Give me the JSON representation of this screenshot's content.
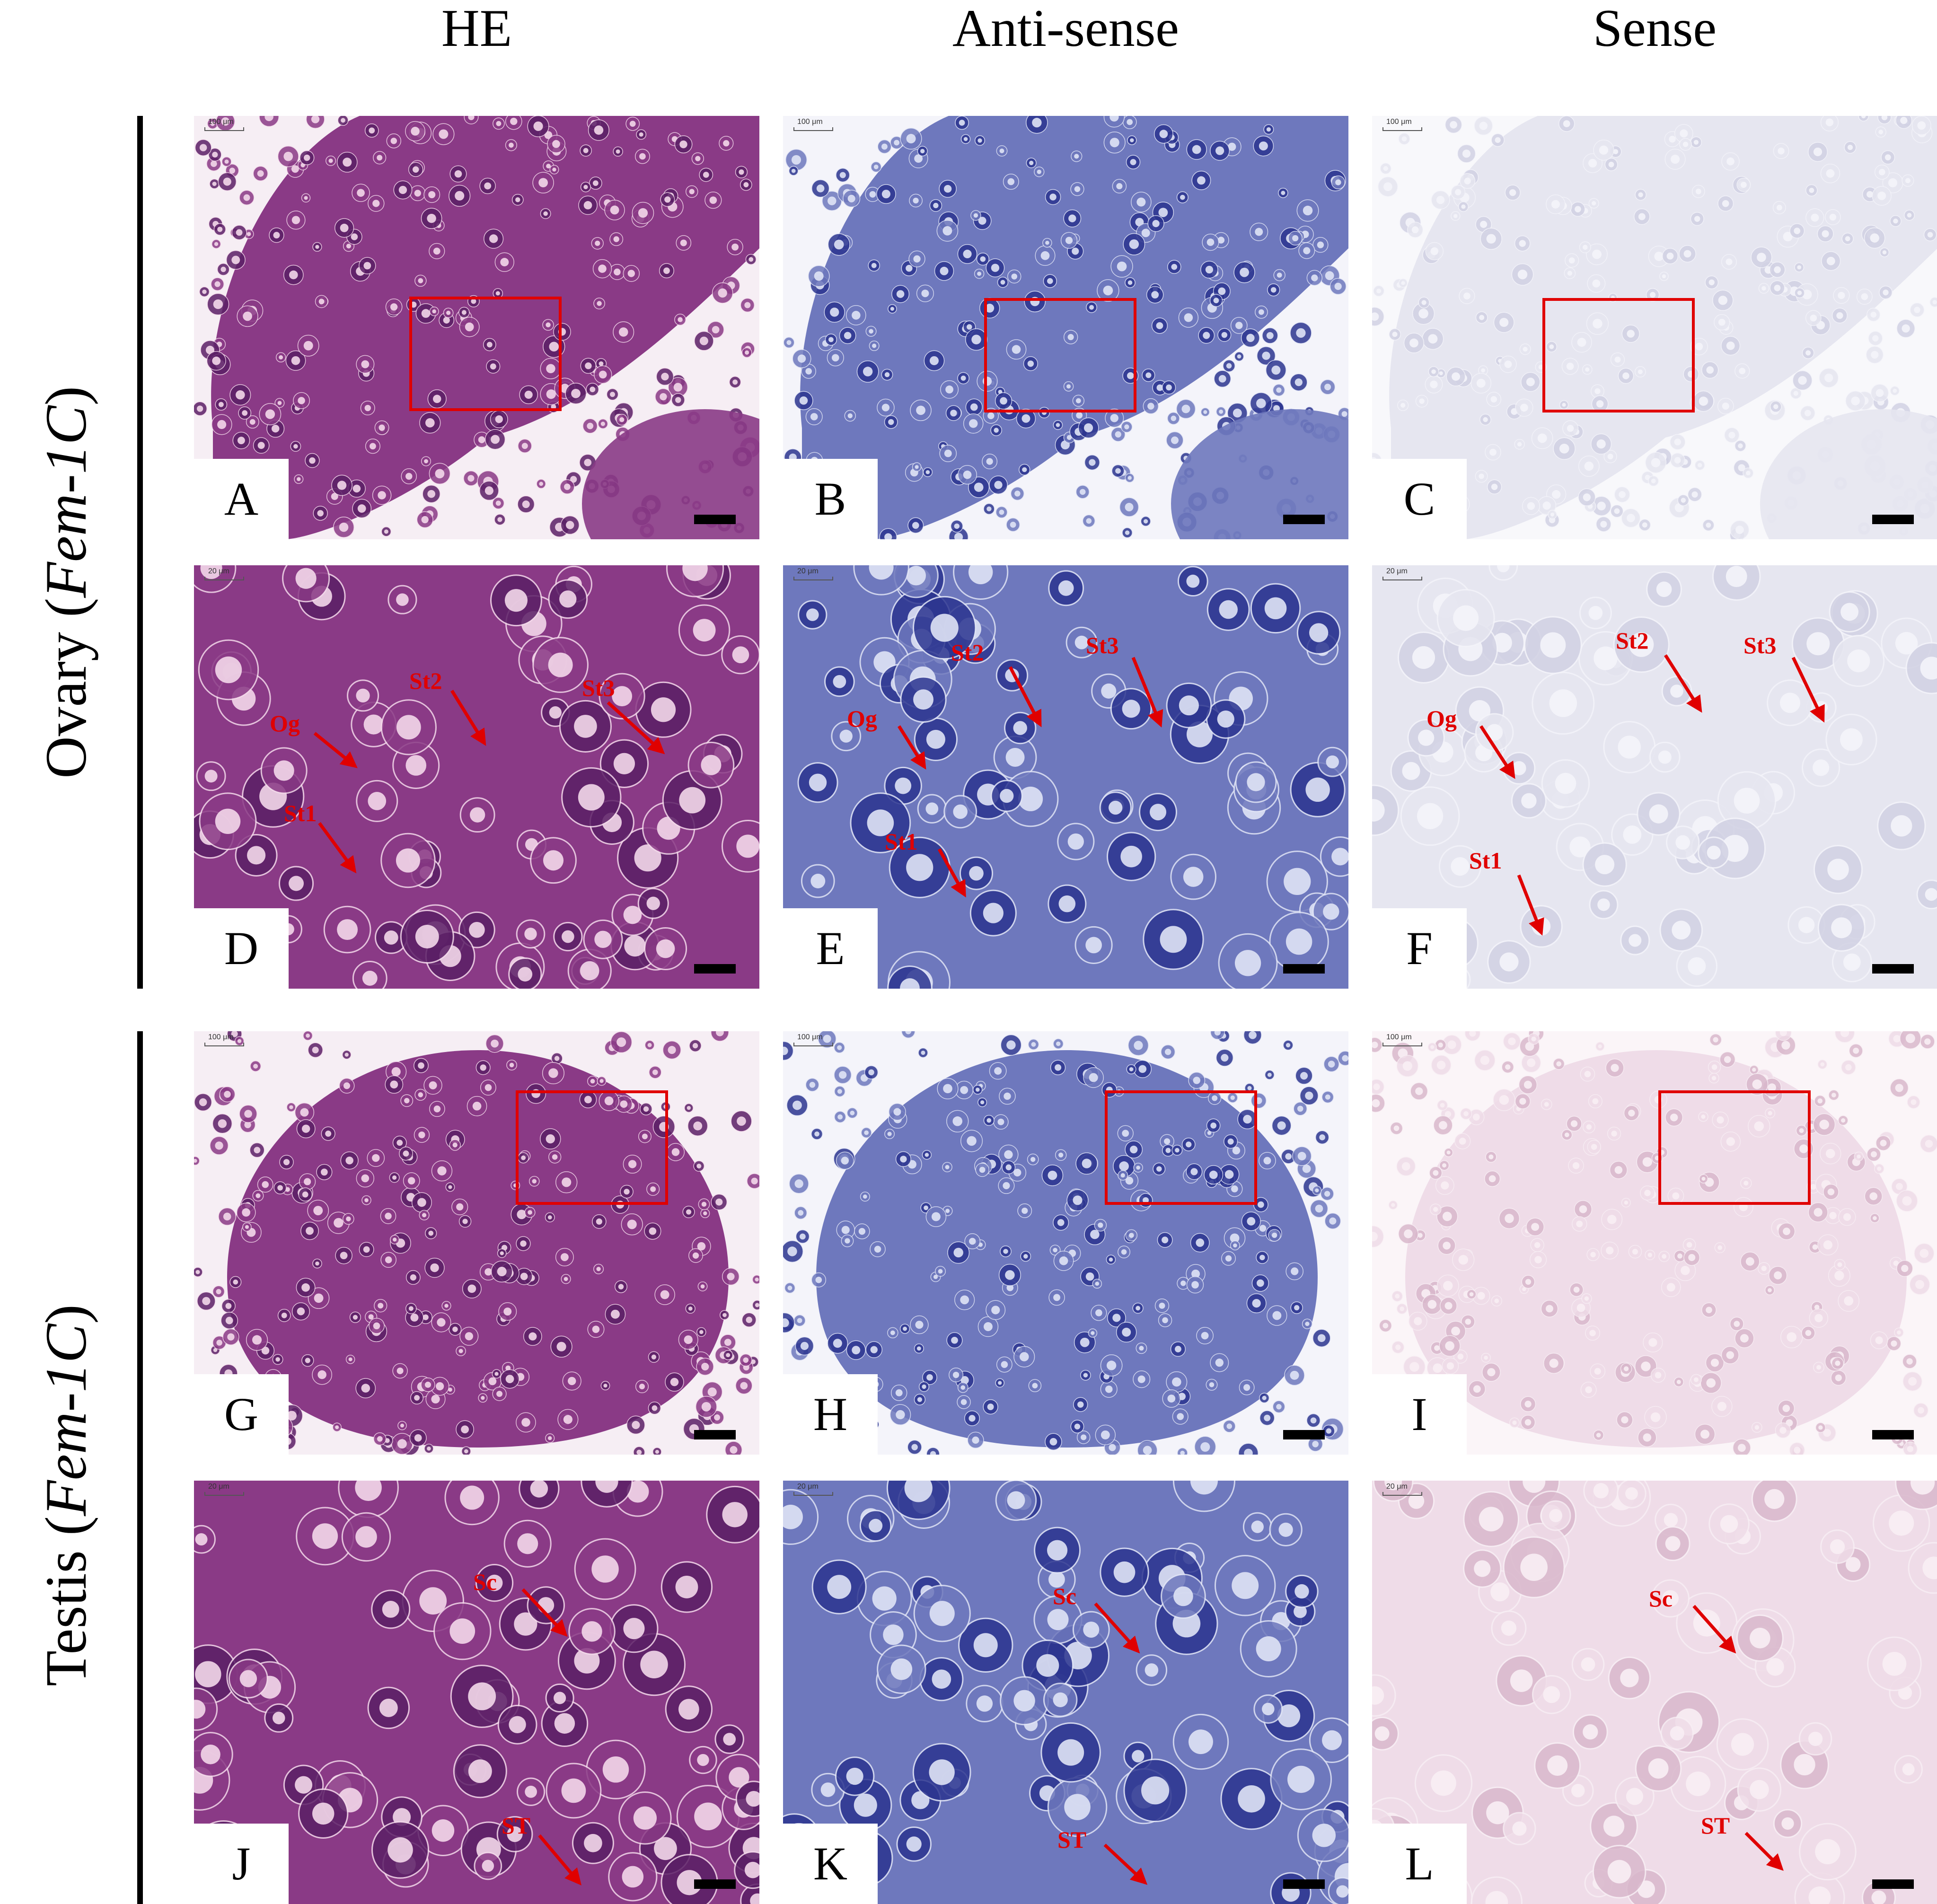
{
  "figure": {
    "columns": [
      "HE",
      "Anti-sense",
      "Sense"
    ],
    "rows": [
      {
        "tissue": "Ovary",
        "gene": "Fem-1C"
      },
      {
        "tissue": "Testis",
        "gene": "Fem-1C"
      }
    ],
    "scale_labels": {
      "overview": "100 μm",
      "zoom": "20 μm"
    },
    "panels": [
      {
        "letter": "A",
        "stain": "he"
      },
      {
        "letter": "B",
        "stain": "anti"
      },
      {
        "letter": "C",
        "stain": "sense"
      },
      {
        "letter": "D",
        "stain": "he",
        "labels": [
          "Og",
          "St1",
          "St2",
          "St3"
        ]
      },
      {
        "letter": "E",
        "stain": "anti",
        "labels": [
          "Og",
          "St1",
          "St2",
          "St3"
        ]
      },
      {
        "letter": "F",
        "stain": "sense",
        "labels": [
          "Og",
          "St1",
          "St2",
          "St3"
        ]
      },
      {
        "letter": "G",
        "stain": "he"
      },
      {
        "letter": "H",
        "stain": "anti"
      },
      {
        "letter": "I",
        "stain": "sense-pink"
      },
      {
        "letter": "J",
        "stain": "he",
        "labels": [
          "Sc",
          "ST"
        ]
      },
      {
        "letter": "K",
        "stain": "anti",
        "labels": [
          "Sc",
          "ST"
        ]
      },
      {
        "letter": "L",
        "stain": "sense-pink",
        "labels": [
          "Sc",
          "ST"
        ]
      }
    ],
    "colors": {
      "he": "#8a3a86",
      "anti": "#3f4aa0",
      "sense": "#e8e8f2",
      "sense_pink": "#efdde8",
      "annotation": "#e00000"
    }
  }
}
